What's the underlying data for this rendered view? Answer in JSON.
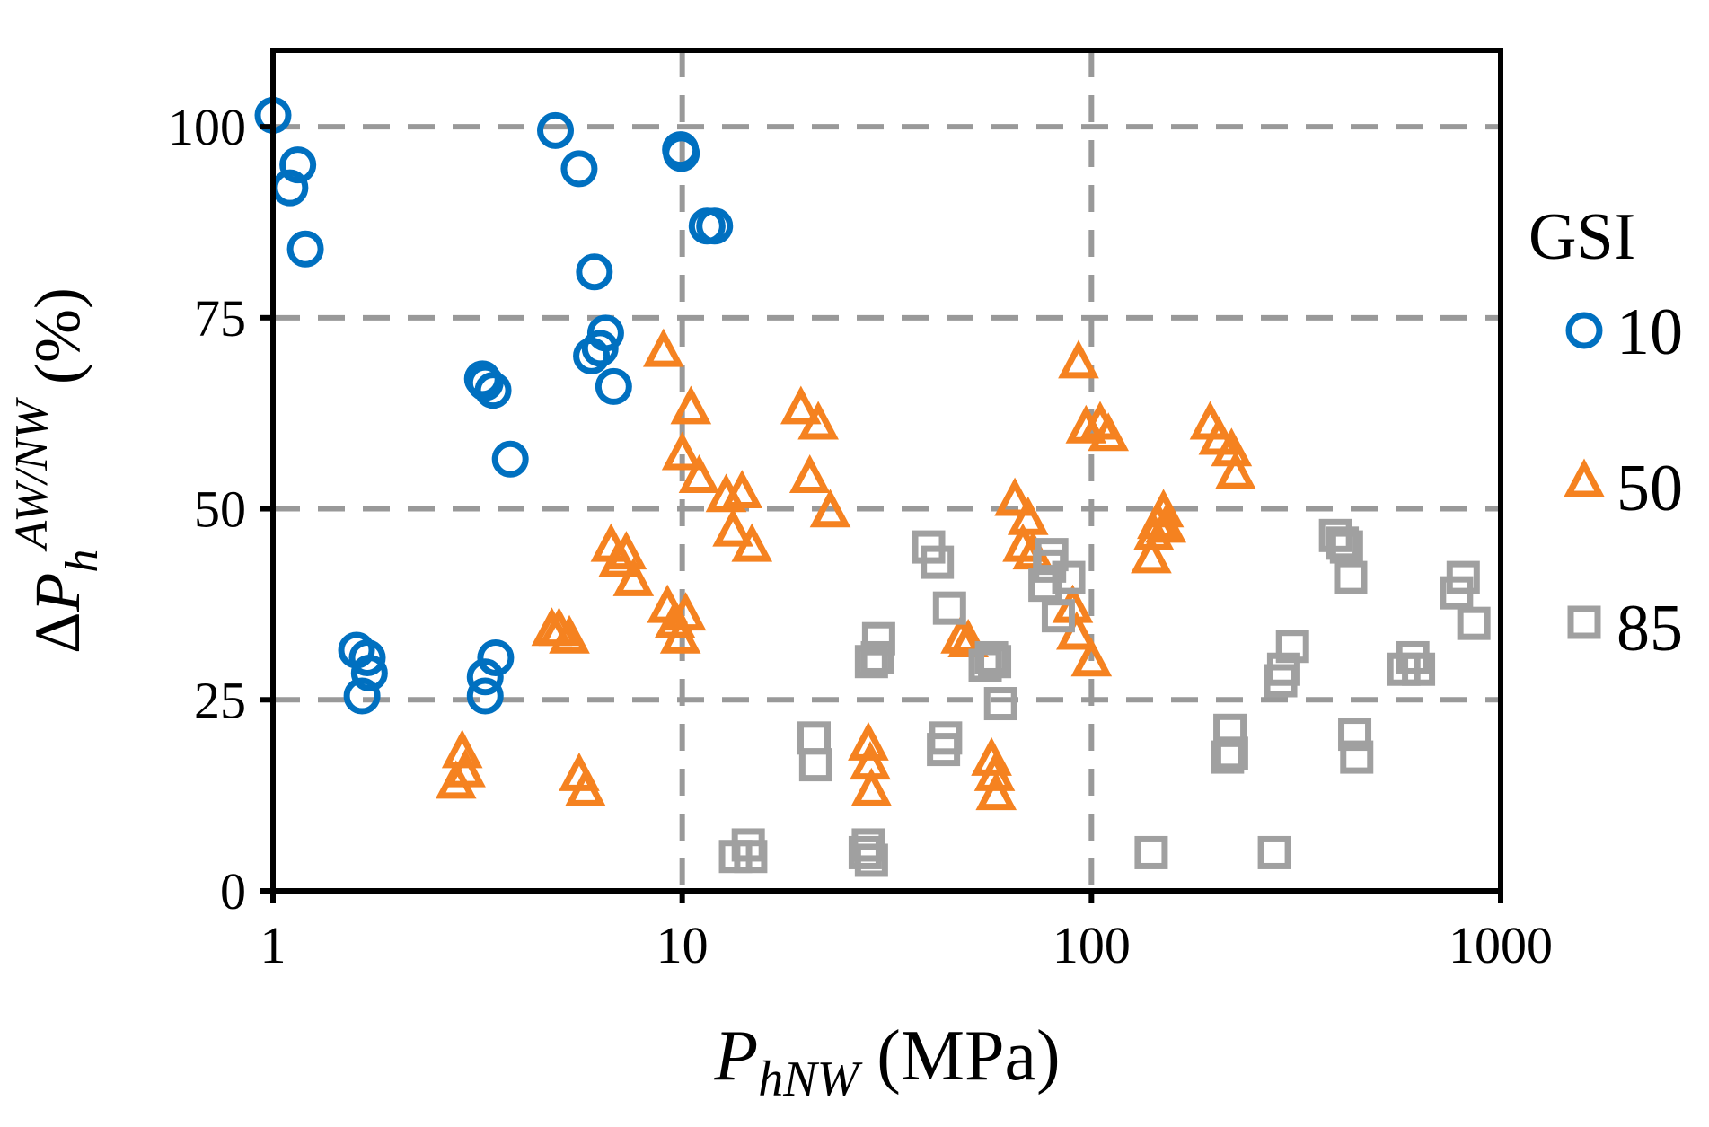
{
  "chart_data": {
    "type": "scatter",
    "x_scale": "log",
    "xlim": [
      1,
      1000
    ],
    "ylim": [
      0,
      110
    ],
    "grid": true,
    "x_ticks": [
      1,
      10,
      100,
      1000
    ],
    "x_tick_labels": [
      "1",
      "10",
      "100",
      "1000"
    ],
    "y_ticks": [
      0,
      25,
      50,
      75,
      100
    ],
    "y_tick_labels": [
      "0",
      "25",
      "50",
      "75",
      "100"
    ],
    "xlabel": {
      "symbol": "P",
      "subscript": "hNW",
      "units": " (MPa)"
    },
    "ylabel": {
      "prefix": "Δ",
      "symbol": "P",
      "subscript": "h",
      "superscript": "AW/NW",
      "units": " (%)"
    },
    "legend": {
      "title": "GSI",
      "placement": "right"
    },
    "colors": {
      "gsi10": "#0070c0",
      "gsi50": "#f58220",
      "gsi85": "#a0a0a0",
      "grid": "#999999",
      "axis": "#000000"
    },
    "series": [
      {
        "name": "10",
        "marker": "circle",
        "color": "#0070c0",
        "points": [
          [
            1.0,
            101.5
          ],
          [
            1.1,
            92
          ],
          [
            1.15,
            95
          ],
          [
            1.2,
            84
          ],
          [
            1.6,
            31.5
          ],
          [
            1.65,
            25.5
          ],
          [
            1.7,
            30.5
          ],
          [
            1.72,
            28.5
          ],
          [
            3.25,
            67
          ],
          [
            3.3,
            66.5
          ],
          [
            3.45,
            65.5
          ],
          [
            3.8,
            56.5
          ],
          [
            3.3,
            28
          ],
          [
            3.3,
            25.5
          ],
          [
            3.5,
            30.5
          ],
          [
            4.9,
            99.5
          ],
          [
            5.6,
            94.5
          ],
          [
            6.1,
            81
          ],
          [
            6.0,
            70
          ],
          [
            6.3,
            71
          ],
          [
            6.5,
            73
          ],
          [
            6.8,
            66
          ],
          [
            9.9,
            97
          ],
          [
            9.95,
            96.5
          ],
          [
            11.5,
            87
          ],
          [
            12,
            87
          ]
        ]
      },
      {
        "name": "50",
        "marker": "triangle",
        "color": "#f58220",
        "points": [
          [
            2.8,
            14
          ],
          [
            2.9,
            18
          ],
          [
            2.95,
            15.5
          ],
          [
            4.8,
            34
          ],
          [
            5.0,
            34
          ],
          [
            5.3,
            33
          ],
          [
            5.6,
            15
          ],
          [
            5.8,
            13
          ],
          [
            6.7,
            45
          ],
          [
            7.0,
            43
          ],
          [
            7.3,
            44
          ],
          [
            7.6,
            40.5
          ],
          [
            9.0,
            70.5
          ],
          [
            9.2,
            37
          ],
          [
            9.6,
            35
          ],
          [
            9.9,
            33
          ],
          [
            10.2,
            36
          ],
          [
            10,
            57
          ],
          [
            10.5,
            63
          ],
          [
            11,
            54
          ],
          [
            12.8,
            51.5
          ],
          [
            13.3,
            47
          ],
          [
            14,
            52
          ],
          [
            14.8,
            45
          ],
          [
            19.5,
            63
          ],
          [
            20.5,
            54
          ],
          [
            21.5,
            61
          ],
          [
            23,
            49.5
          ],
          [
            28.5,
            19
          ],
          [
            28.8,
            16.5
          ],
          [
            29,
            13
          ],
          [
            48,
            33
          ],
          [
            50,
            32.5
          ],
          [
            57,
            17
          ],
          [
            58,
            15
          ],
          [
            58.5,
            12.5
          ],
          [
            65,
            51
          ],
          [
            68,
            45
          ],
          [
            70,
            48.5
          ],
          [
            72,
            44
          ],
          [
            90,
            37
          ],
          [
            92,
            33.5
          ],
          [
            93,
            69
          ],
          [
            97,
            60.5
          ],
          [
            100,
            30
          ],
          [
            105,
            61
          ],
          [
            110,
            59.5
          ],
          [
            140,
            43.5
          ],
          [
            142,
            46.5
          ],
          [
            145,
            48
          ],
          [
            150,
            49.5
          ],
          [
            152,
            47.5
          ],
          [
            195,
            61
          ],
          [
            205,
            59
          ],
          [
            220,
            57.5
          ],
          [
            225,
            54.5
          ]
        ]
      },
      {
        "name": "85",
        "marker": "square",
        "color": "#a0a0a0",
        "points": [
          [
            13.5,
            4.5
          ],
          [
            14.5,
            6
          ],
          [
            14.7,
            4.5
          ],
          [
            21,
            20
          ],
          [
            21.2,
            16.5
          ],
          [
            28,
            5
          ],
          [
            28.5,
            6
          ],
          [
            29,
            4
          ],
          [
            29,
            30
          ],
          [
            30,
            30.5
          ],
          [
            30.2,
            33
          ],
          [
            40,
            45
          ],
          [
            42,
            43
          ],
          [
            43.5,
            18.5
          ],
          [
            44,
            20
          ],
          [
            45,
            37
          ],
          [
            55,
            29.5
          ],
          [
            57,
            30.5
          ],
          [
            58,
            30
          ],
          [
            60,
            24.5
          ],
          [
            77,
            40
          ],
          [
            79,
            42.5
          ],
          [
            80,
            44
          ],
          [
            83,
            36
          ],
          [
            88,
            41
          ],
          [
            140,
            5
          ],
          [
            215,
            17.5
          ],
          [
            218,
            21
          ],
          [
            220,
            18
          ],
          [
            280,
            5
          ],
          [
            290,
            27.5
          ],
          [
            295,
            29
          ],
          [
            310,
            32
          ],
          [
            395,
            46.5
          ],
          [
            410,
            45.5
          ],
          [
            420,
            45
          ],
          [
            430,
            41
          ],
          [
            440,
            20.5
          ],
          [
            445,
            17.5
          ],
          [
            580,
            29
          ],
          [
            610,
            30.5
          ],
          [
            630,
            29
          ],
          [
            780,
            39
          ],
          [
            810,
            41
          ],
          [
            860,
            35
          ]
        ]
      }
    ]
  }
}
